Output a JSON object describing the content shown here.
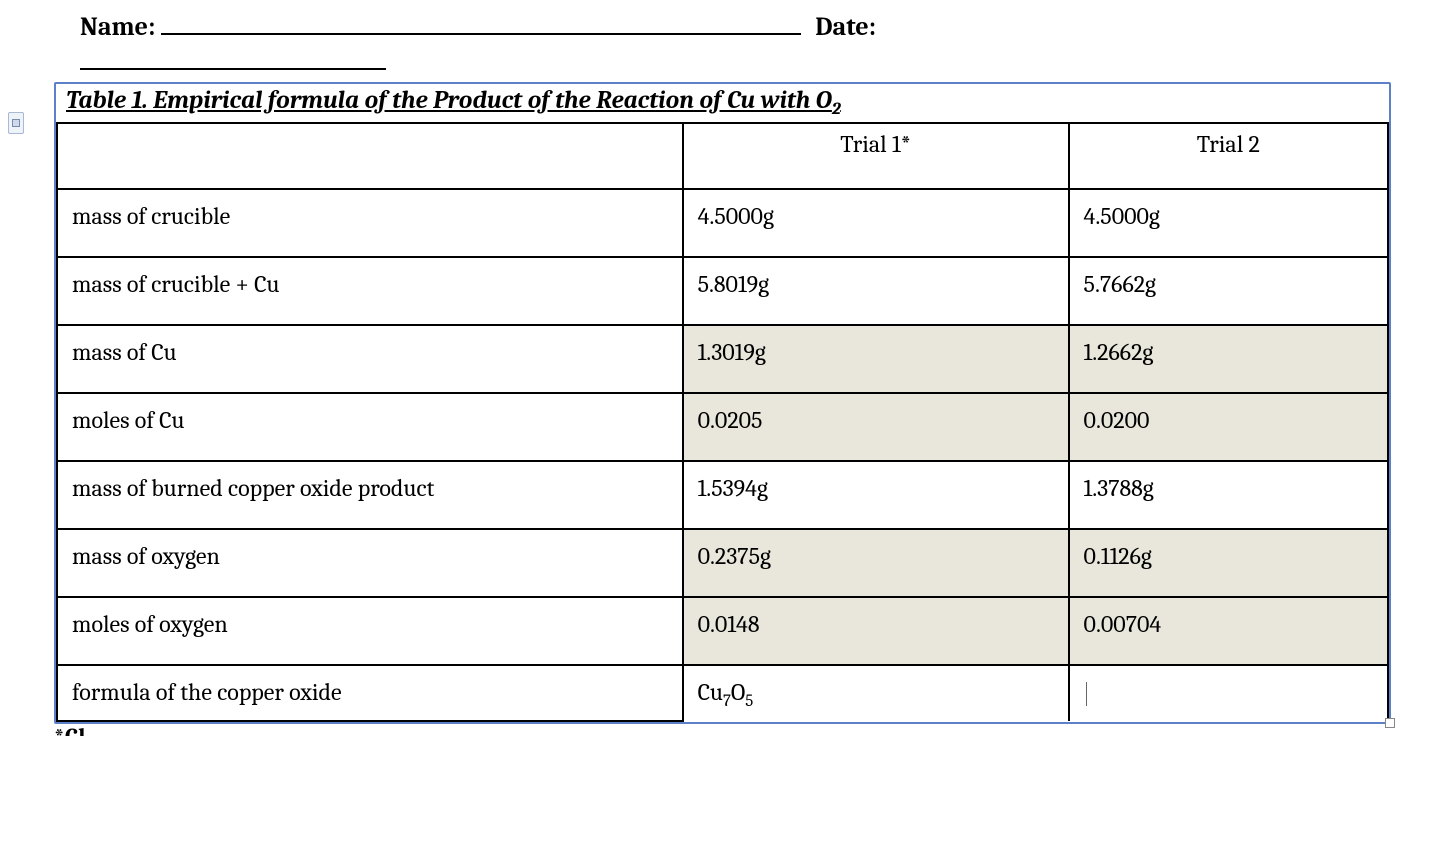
{
  "header": {
    "name_label": "Name:",
    "date_label": "Date:"
  },
  "table": {
    "title_prefix": "Table 1. Empirical formula of the Product of the Reaction of Cu with O",
    "title_sub": "2",
    "columns": {
      "blank": "",
      "trial1": "Trial 1*",
      "trial2": "Trial 2"
    },
    "rows": [
      {
        "label": "mass of crucible",
        "trial1": "4.5000g",
        "trial2": "4.5000g",
        "shaded": false
      },
      {
        "label": "mass of crucible + Cu",
        "trial1": "5.8019g",
        "trial2": "5.7662g",
        "shaded": false
      },
      {
        "label": "mass of Cu",
        "trial1": "1.3019g",
        "trial2": "1.2662g",
        "shaded": true
      },
      {
        "label": "moles of Cu",
        "trial1": "0.0205",
        "trial2": "0.0200",
        "shaded": true
      },
      {
        "label": "mass of burned copper oxide product",
        "trial1": "1.5394g",
        "trial2": "1.3788g",
        "shaded": false
      },
      {
        "label": "mass of oxygen",
        "trial1": "0.2375g",
        "trial2": "0.1126g",
        "shaded": true
      },
      {
        "label": "moles of oxygen",
        "trial1": "0.0148",
        "trial2": "0.00704",
        "shaded": true
      }
    ],
    "formula_row": {
      "label": "formula of the copper oxide",
      "trial1_base": "Cu",
      "trial1_sub1": "7",
      "trial1_mid": "O",
      "trial1_sub2": "5",
      "trial2": ""
    }
  },
  "style": {
    "background_color": "#ffffff",
    "shaded_cell_color": "#e9e7db",
    "border_color": "#000000",
    "selection_border_color": "#5c81c8",
    "font_family": "Cambria, Georgia, 'Times New Roman', serif",
    "header_font_size_pt": 20,
    "cell_font_size_pt": 18,
    "title_font_size_pt": 19
  },
  "cut_text": "*Cl"
}
